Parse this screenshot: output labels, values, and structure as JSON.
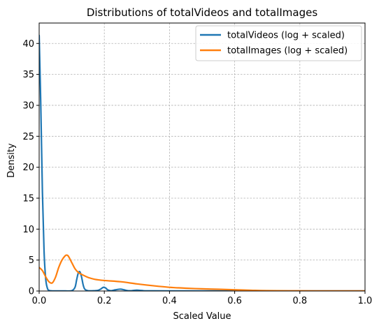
{
  "chart_data": {
    "type": "line",
    "title": "Distributions of totalVideos and totalImages",
    "xlabel": "Scaled Value",
    "ylabel": "Density",
    "xlim": [
      0,
      1
    ],
    "ylim": [
      0,
      43.3
    ],
    "xticks": [
      0.0,
      0.2,
      0.4,
      0.6,
      0.8,
      1.0
    ],
    "xtick_labels": [
      "0.0",
      "0.2",
      "0.4",
      "0.6",
      "0.8",
      "1.0"
    ],
    "yticks": [
      0,
      5,
      10,
      15,
      20,
      25,
      30,
      35,
      40
    ],
    "ytick_labels": [
      "0",
      "5",
      "10",
      "15",
      "20",
      "25",
      "30",
      "35",
      "40"
    ],
    "grid": true,
    "legend_position": "top-right",
    "series": [
      {
        "name": "totalVideos (log + scaled)",
        "color": "#1f77b4",
        "x": [
          0.0,
          0.005,
          0.01,
          0.015,
          0.02,
          0.025,
          0.03,
          0.04,
          0.06,
          0.08,
          0.1,
          0.11,
          0.115,
          0.12,
          0.125,
          0.13,
          0.135,
          0.14,
          0.15,
          0.17,
          0.18,
          0.19,
          0.195,
          0.2,
          0.205,
          0.21,
          0.22,
          0.23,
          0.24,
          0.25,
          0.26,
          0.27,
          0.28,
          0.29,
          0.3,
          0.31,
          0.32,
          0.33,
          0.35,
          0.4,
          0.5,
          0.6,
          0.7,
          0.8,
          0.9,
          1.0
        ],
        "y": [
          41.3,
          30.0,
          16.0,
          6.5,
          2.0,
          0.5,
          0.1,
          0.02,
          0.02,
          0.02,
          0.05,
          0.6,
          1.8,
          2.9,
          3.1,
          2.3,
          1.0,
          0.3,
          0.05,
          0.05,
          0.1,
          0.35,
          0.55,
          0.6,
          0.45,
          0.2,
          0.05,
          0.15,
          0.25,
          0.3,
          0.2,
          0.08,
          0.05,
          0.1,
          0.15,
          0.1,
          0.05,
          0.03,
          0.03,
          0.02,
          0.02,
          0.02,
          0.02,
          0.02,
          0.02,
          0.02
        ]
      },
      {
        "name": "totalImages (log + scaled)",
        "color": "#ff7f0e",
        "x": [
          0.0,
          0.01,
          0.02,
          0.03,
          0.04,
          0.05,
          0.06,
          0.07,
          0.08,
          0.085,
          0.09,
          0.1,
          0.11,
          0.12,
          0.13,
          0.15,
          0.17,
          0.2,
          0.25,
          0.3,
          0.35,
          0.4,
          0.45,
          0.5,
          0.55,
          0.6,
          0.65,
          0.7,
          0.8,
          0.9,
          1.0
        ],
        "y": [
          3.8,
          3.3,
          2.3,
          1.5,
          1.3,
          2.2,
          3.8,
          5.0,
          5.7,
          5.8,
          5.6,
          4.6,
          3.6,
          3.0,
          2.7,
          2.2,
          1.9,
          1.7,
          1.5,
          1.15,
          0.85,
          0.6,
          0.45,
          0.35,
          0.28,
          0.2,
          0.12,
          0.06,
          0.03,
          0.02,
          0.02
        ]
      }
    ]
  }
}
